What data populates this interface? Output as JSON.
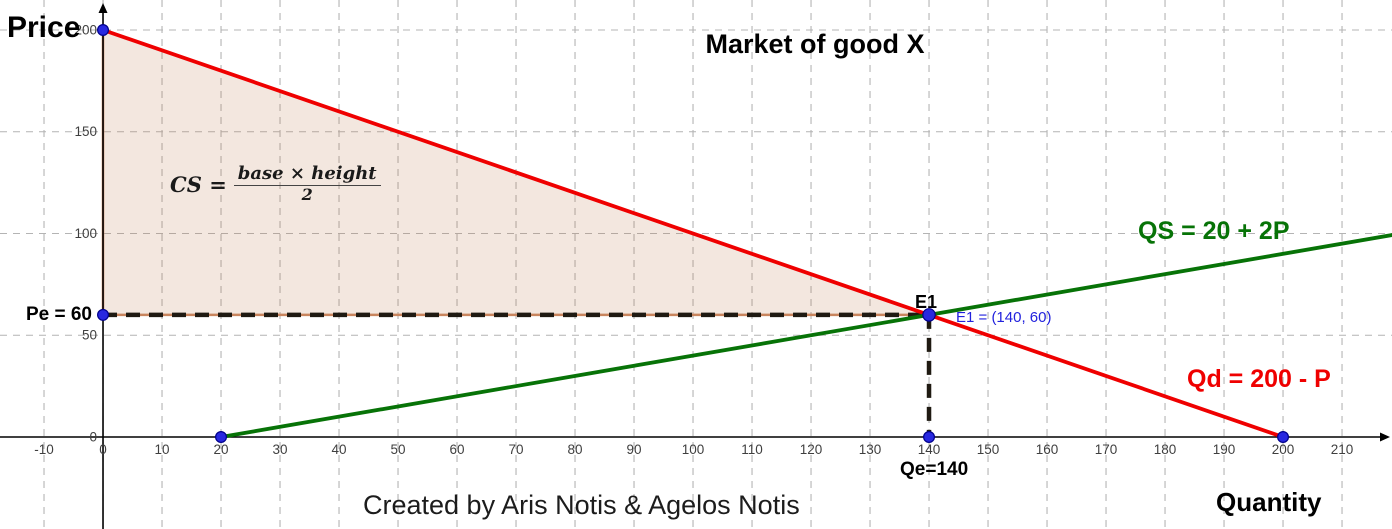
{
  "title": "Market of good X",
  "axis_labels": {
    "y": "Price",
    "x": "Quantity"
  },
  "credits": "Created by Aris Notis & Agelos Notis",
  "labels": {
    "supply": "QS = 20 + 2P",
    "demand": "Qd = 200 - P",
    "pe": "Pe = 60",
    "qe": "Qe=140",
    "e1": "E1",
    "e1_coords": "E1 = (140, 60)"
  },
  "cs_formula": {
    "lhs": "CS =",
    "numerator": "base × height",
    "denominator": "2"
  },
  "colors": {
    "demand": "#ef0000",
    "supply": "#077307",
    "point_fill": "#2828e0",
    "point_border": "#00008b",
    "region_fill": "rgba(190,120,75,0.18)",
    "region_border": "#c9855e",
    "grid": "#b4b4b4",
    "dashed_guide": "#1f1a12",
    "axis": "#000000",
    "tick_text": "#3f3f3f"
  },
  "chart_data": {
    "type": "line",
    "title": "Market of good X",
    "xlabel": "Quantity",
    "ylabel": "Price",
    "xlim": [
      -17.46,
      218.47
    ],
    "ylim": [
      -45.21,
      214.74
    ],
    "grid": true,
    "x_ticks": [
      -10,
      0,
      10,
      20,
      30,
      40,
      50,
      60,
      70,
      80,
      90,
      100,
      110,
      120,
      130,
      140,
      150,
      160,
      170,
      180,
      190,
      200,
      210
    ],
    "y_ticks": [
      0,
      50,
      100,
      150,
      200
    ],
    "series": [
      {
        "name": "Qd = 200 - P",
        "role": "demand",
        "points": [
          [
            0,
            200
          ],
          [
            200,
            0
          ]
        ]
      },
      {
        "name": "QS = 20 + 2P",
        "role": "supply",
        "points": [
          [
            20,
            0
          ],
          [
            218.47,
            99.24
          ]
        ]
      }
    ],
    "equilibrium": {
      "name": "E1",
      "q": 140,
      "p": 60,
      "price": "Pe = 60",
      "quantity": "Qe=140"
    },
    "consumer_surplus_region": [
      [
        0,
        200
      ],
      [
        0,
        60
      ],
      [
        140,
        60
      ]
    ],
    "dashed_guides": [
      [
        [
          0,
          60
        ],
        [
          140,
          60
        ]
      ],
      [
        [
          140,
          60
        ],
        [
          140,
          0
        ]
      ]
    ],
    "marked_points": [
      [
        0,
        200
      ],
      [
        0,
        60
      ],
      [
        20,
        0
      ],
      [
        140,
        60
      ],
      [
        140,
        0
      ],
      [
        200,
        0
      ]
    ]
  }
}
